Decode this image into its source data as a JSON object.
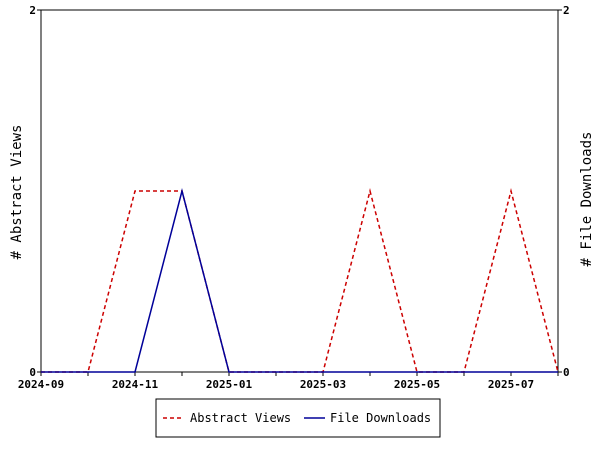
{
  "chart_data": {
    "type": "line",
    "x": [
      "2024-09",
      "2024-10",
      "2024-11",
      "2024-12",
      "2025-01",
      "2025-02",
      "2025-03",
      "2025-04",
      "2025-05",
      "2025-06",
      "2025-07",
      "2025-08"
    ],
    "xticks": [
      "2024-09",
      "2024-11",
      "2025-01",
      "2025-03",
      "2025-05",
      "2025-07"
    ],
    "series": [
      {
        "name": "Abstract Views",
        "axis": "left",
        "style": "dashed",
        "color": "#cc0000",
        "values": [
          0,
          0,
          1,
          1,
          0,
          0,
          0,
          1,
          0,
          0,
          1,
          0
        ]
      },
      {
        "name": "File Downloads",
        "axis": "right",
        "style": "solid",
        "color": "#000099",
        "values": [
          0,
          0,
          0,
          1,
          0,
          0,
          0,
          0,
          0,
          0,
          0,
          0
        ]
      }
    ],
    "ylabel_left": "# Abstract Views",
    "ylabel_right": "# File Downloads",
    "ylim_left": [
      0,
      2
    ],
    "ylim_right": [
      0,
      2
    ],
    "yticks_left": [
      "0",
      "2"
    ],
    "yticks_right": [
      "0",
      "2"
    ],
    "grid": false,
    "legend_position": "bottom"
  }
}
